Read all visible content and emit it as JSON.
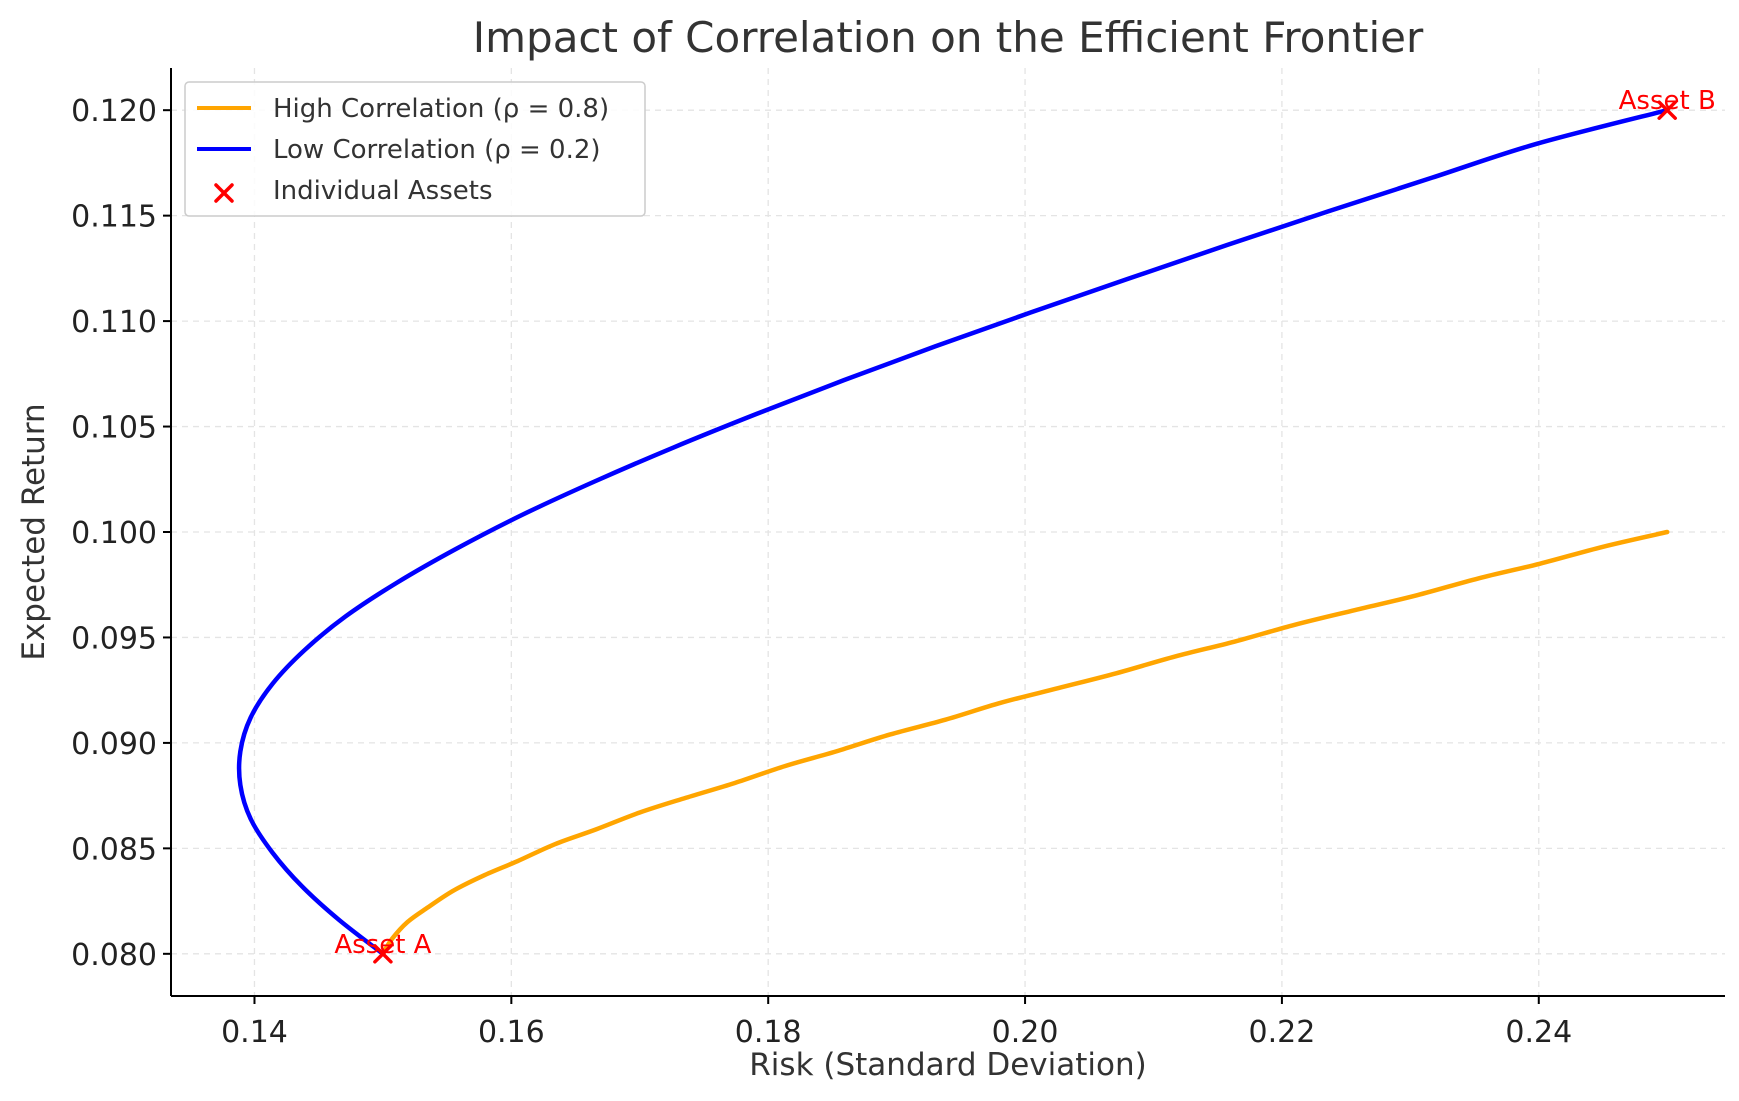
{
  "chart_data": {
    "type": "line",
    "title": "Impact of Correlation on the Efficient Frontier",
    "xlabel": "Risk (Standard Deviation)",
    "ylabel": "Expected Return",
    "xlim": [
      0.1335,
      0.2545
    ],
    "ylim": [
      0.078,
      0.122
    ],
    "x_ticks": [
      {
        "value": 0.14,
        "label": "0.14"
      },
      {
        "value": 0.16,
        "label": "0.16"
      },
      {
        "value": 0.18,
        "label": "0.18"
      },
      {
        "value": 0.2,
        "label": "0.20"
      },
      {
        "value": 0.22,
        "label": "0.22"
      },
      {
        "value": 0.24,
        "label": "0.24"
      }
    ],
    "y_ticks": [
      {
        "value": 0.08,
        "label": "0.080"
      },
      {
        "value": 0.085,
        "label": "0.085"
      },
      {
        "value": 0.09,
        "label": "0.090"
      },
      {
        "value": 0.095,
        "label": "0.095"
      },
      {
        "value": 0.1,
        "label": "0.100"
      },
      {
        "value": 0.105,
        "label": "0.105"
      },
      {
        "value": 0.11,
        "label": "0.110"
      },
      {
        "value": 0.115,
        "label": "0.115"
      },
      {
        "value": 0.12,
        "label": "0.120"
      }
    ],
    "grid": true,
    "legend_position": "top-left",
    "series": [
      {
        "name": "High Correlation (ρ = 0.8)",
        "type": "line",
        "color": "#FFA500",
        "x": [
          0.15,
          0.1507,
          0.1519,
          0.1535,
          0.1555,
          0.1578,
          0.1605,
          0.1634,
          0.1666,
          0.17,
          0.1736,
          0.1774,
          0.1813,
          0.1853,
          0.1895,
          0.1938,
          0.1981,
          0.2026,
          0.2071,
          0.2117,
          0.2163,
          0.221,
          0.2257,
          0.2305,
          0.2353,
          0.2401,
          0.245,
          0.25
        ],
        "y": [
          0.08,
          0.0807,
          0.0815,
          0.0822,
          0.083,
          0.0837,
          0.0844,
          0.0852,
          0.0859,
          0.0867,
          0.0874,
          0.0881,
          0.0889,
          0.0896,
          0.0904,
          0.0911,
          0.0919,
          0.0926,
          0.0933,
          0.0941,
          0.0948,
          0.0956,
          0.0963,
          0.097,
          0.0978,
          0.0985,
          0.0993,
          0.1
        ]
      },
      {
        "name": "Low Correlation (ρ = 0.2)",
        "type": "line",
        "color": "#0000FF",
        "x": [
          0.15,
          0.1466,
          0.1437,
          0.1414,
          0.1397,
          0.1389,
          0.1389,
          0.1397,
          0.1414,
          0.1439,
          0.1471,
          0.1511,
          0.1557,
          0.1608,
          0.1665,
          0.1726,
          0.1791,
          0.1859,
          0.193,
          0.2004,
          0.208,
          0.2157,
          0.2236,
          0.2317,
          0.2398,
          0.25
        ],
        "y": [
          0.08,
          0.0816,
          0.0832,
          0.0848,
          0.0864,
          0.088,
          0.0896,
          0.0912,
          0.0928,
          0.0944,
          0.096,
          0.0976,
          0.0992,
          0.1008,
          0.1024,
          0.104,
          0.1056,
          0.1072,
          0.1088,
          0.1104,
          0.112,
          0.1136,
          0.1152,
          0.1168,
          0.1184,
          0.12
        ]
      },
      {
        "name": "Individual Assets",
        "type": "scatter",
        "marker": "x",
        "color": "#FF0000",
        "points": [
          {
            "x": 0.15,
            "y": 0.08,
            "label": "Asset A"
          },
          {
            "x": 0.25,
            "y": 0.12,
            "label": "Asset B"
          }
        ]
      }
    ]
  }
}
